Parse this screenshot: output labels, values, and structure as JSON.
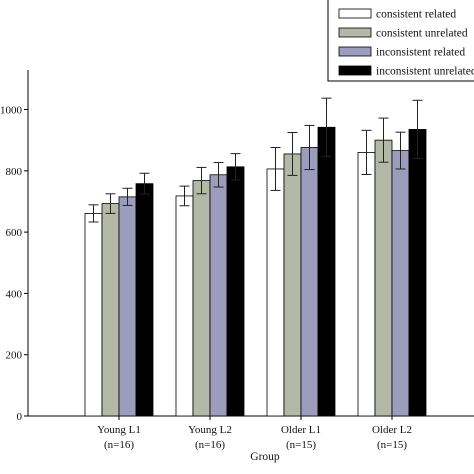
{
  "chart_data": {
    "type": "bar",
    "xlabel": "Group",
    "ylabel": "",
    "ylim": [
      0,
      1100
    ],
    "yticks": [
      0,
      200,
      400,
      600,
      800,
      1000
    ],
    "ytick_labels": [
      "0",
      "200",
      "400",
      "600",
      "800",
      "1000"
    ],
    "categories": [
      "Young L1",
      "Young L2",
      "Older L1",
      "Older L2"
    ],
    "category_sublabels": [
      "(n=16)",
      "(n=16)",
      "(n=15)",
      "(n=15)"
    ],
    "legend_position": "top-right",
    "series": [
      {
        "name": "consistent related",
        "color": "#ffffff",
        "values": [
          661,
          718,
          806,
          860
        ],
        "errors": [
          28,
          32,
          70,
          72
        ]
      },
      {
        "name": "consistent unrelated",
        "color": "#b4b8a6",
        "values": [
          693,
          768,
          855,
          900
        ],
        "errors": [
          32,
          43,
          70,
          72
        ]
      },
      {
        "name": "inconsistent related",
        "color": "#9c9cbc",
        "values": [
          715,
          787,
          876,
          866
        ],
        "errors": [
          28,
          40,
          72,
          60
        ]
      },
      {
        "name": "inconsistent unrelated",
        "color": "#000000",
        "values": [
          758,
          813,
          942,
          935
        ],
        "errors": [
          34,
          43,
          95,
          95
        ]
      }
    ],
    "error_bars": true,
    "grid": false
  }
}
